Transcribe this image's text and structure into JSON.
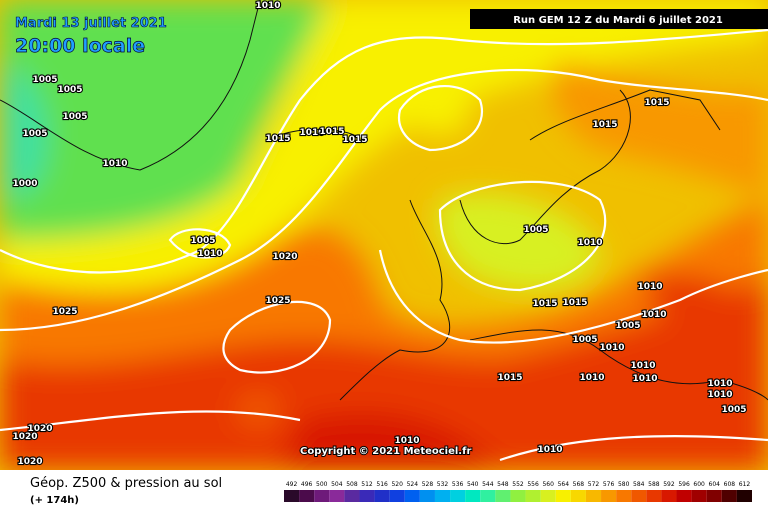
{
  "header": {
    "date": "Mardi 13 juillet 2021",
    "time": "20:00 locale",
    "run": "Run GEM 12 Z du Mardi 6 juillet 2021"
  },
  "copyright": "Copyright © 2021 Meteociel.fr",
  "footer": {
    "title": "Géop. Z500 & pression au sol",
    "lead": "(+ 174h)"
  },
  "isobar_labels": [
    "1010",
    "1005",
    "1005",
    "1005",
    "1005",
    "1010",
    "1000",
    "1015",
    "1010",
    "1015",
    "1015",
    "1005",
    "1010",
    "1020",
    "1025",
    "1025",
    "1015",
    "1015",
    "1005",
    "1010",
    "1010",
    "1015",
    "1015",
    "1005",
    "1010",
    "1005",
    "1010",
    "1010",
    "1010",
    "1015",
    "1010",
    "1010",
    "1010",
    "1005",
    "1010",
    "1010",
    "1020",
    "1020",
    "1020"
  ],
  "scale": {
    "labels": [
      "492",
      "496",
      "500",
      "504",
      "508",
      "512",
      "516",
      "520",
      "524",
      "528",
      "532",
      "536",
      "540",
      "544",
      "548",
      "552",
      "556",
      "560",
      "564",
      "568",
      "572",
      "576",
      "580",
      "584",
      "588",
      "592",
      "596",
      "600",
      "604",
      "608",
      "612"
    ],
    "colors": [
      "#2a0a2a",
      "#4b0b4b",
      "#6e1a7a",
      "#8a2a9a",
      "#5a2aa0",
      "#3a2ab8",
      "#2030c8",
      "#1040e0",
      "#0060f0",
      "#0090f0",
      "#00b0f0",
      "#00d0e0",
      "#00e8c0",
      "#30f0a0",
      "#60f070",
      "#90f040",
      "#b0f030",
      "#d8f020",
      "#f8f000",
      "#f8d800",
      "#f8b800",
      "#f89800",
      "#f87800",
      "#f05800",
      "#e83800",
      "#d81800",
      "#c00000",
      "#a00000",
      "#800000",
      "#500000",
      "#200000"
    ]
  }
}
